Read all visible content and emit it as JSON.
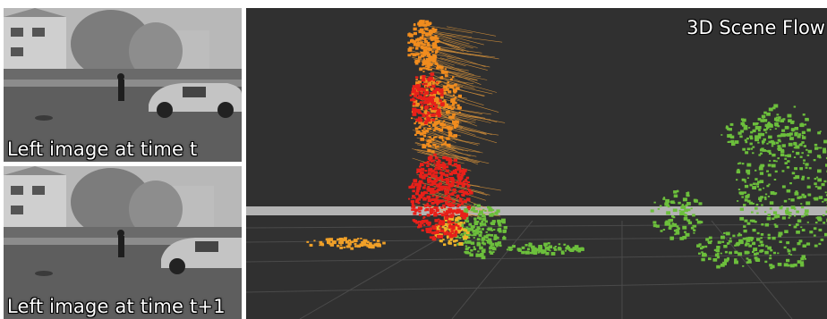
{
  "panels": {
    "top_caption": "Left image at time t",
    "bottom_caption": "Left image at time t+1",
    "scene_title": "3D Scene Flow"
  },
  "colors": {
    "scene_background": "#303030",
    "ground_strip": "#b4b4b4",
    "near_points": "#e8201a",
    "mid_points": "#f08c1e",
    "far_points": "#6cbf3c"
  }
}
